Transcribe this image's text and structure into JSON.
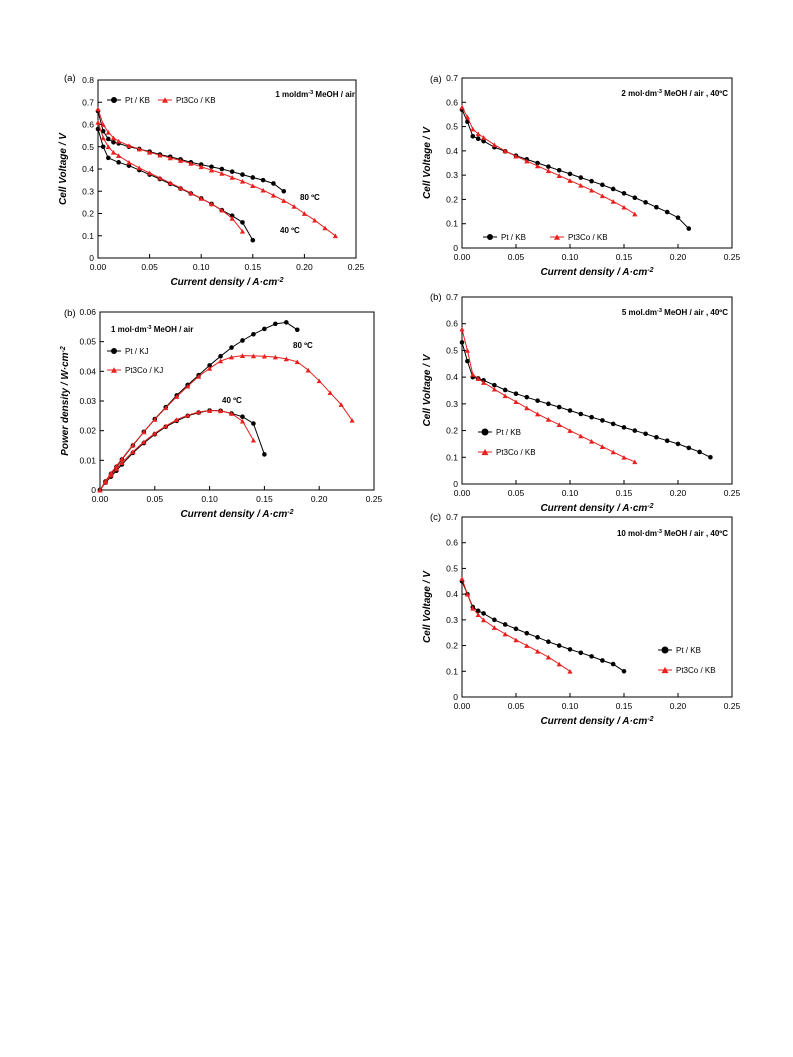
{
  "chart_data": [
    {
      "id": "p1",
      "type": "line",
      "panel_label": "(a)",
      "annotation": "1 moldm-3 MeOH / air",
      "xlabel": "Current density  / A·cm-2",
      "ylabel": "Cell Voltage  / V",
      "xlim": [
        0,
        0.25
      ],
      "ylim": [
        0,
        0.8
      ],
      "xticks": [
        "0.00",
        "0.05",
        "0.10",
        "0.15",
        "0.20",
        "0.25"
      ],
      "yticks": [
        "0",
        "0.1",
        "0.2",
        "0.3",
        "0.4",
        "0.5",
        "0.6",
        "0.7",
        "0.8"
      ],
      "legend_position": "top-left",
      "grid": false,
      "series": [
        {
          "name": "Pt / KB",
          "color": "#000000",
          "marker": "circle",
          "x": [
            0,
            0.005,
            0.01,
            0.015,
            0.02,
            0.03,
            0.04,
            0.05,
            0.06,
            0.07,
            0.08,
            0.09,
            0.1,
            0.11,
            0.12,
            0.13,
            0.14,
            0.15,
            0.16,
            0.17,
            0.18
          ],
          "y": [
            0.66,
            0.57,
            0.535,
            0.52,
            0.515,
            0.5,
            0.49,
            0.478,
            0.465,
            0.455,
            0.443,
            0.43,
            0.42,
            0.41,
            0.4,
            0.388,
            0.375,
            0.362,
            0.35,
            0.335,
            0.3
          ]
        },
        {
          "name": "Pt / KB",
          "color": "#000000",
          "marker": "circle",
          "x": [
            0,
            0.005,
            0.01,
            0.02,
            0.03,
            0.04,
            0.05,
            0.06,
            0.07,
            0.08,
            0.09,
            0.1,
            0.11,
            0.12,
            0.13,
            0.14,
            0.15
          ],
          "y": [
            0.58,
            0.5,
            0.45,
            0.43,
            0.415,
            0.395,
            0.375,
            0.355,
            0.333,
            0.312,
            0.29,
            0.268,
            0.243,
            0.215,
            0.19,
            0.16,
            0.08
          ]
        },
        {
          "name": "Pt3Co / KB",
          "color": "#e8201e",
          "marker": "triangle",
          "x": [
            0,
            0.005,
            0.01,
            0.015,
            0.02,
            0.03,
            0.04,
            0.05,
            0.06,
            0.07,
            0.08,
            0.09,
            0.1,
            0.11,
            0.12,
            0.13,
            0.14,
            0.15,
            0.16,
            0.17,
            0.18,
            0.19,
            0.2,
            0.21,
            0.22,
            0.23
          ],
          "y": [
            0.67,
            0.6,
            0.565,
            0.54,
            0.525,
            0.505,
            0.49,
            0.475,
            0.462,
            0.45,
            0.438,
            0.425,
            0.41,
            0.395,
            0.38,
            0.362,
            0.345,
            0.325,
            0.305,
            0.282,
            0.258,
            0.232,
            0.2,
            0.17,
            0.135,
            0.1
          ]
        },
        {
          "name": "Pt3Co / KB",
          "color": "#e8201e",
          "marker": "triangle",
          "x": [
            0,
            0.005,
            0.01,
            0.015,
            0.02,
            0.03,
            0.04,
            0.05,
            0.06,
            0.07,
            0.08,
            0.09,
            0.1,
            0.11,
            0.12,
            0.13,
            0.14
          ],
          "y": [
            0.61,
            0.54,
            0.5,
            0.475,
            0.46,
            0.43,
            0.405,
            0.382,
            0.36,
            0.338,
            0.315,
            0.292,
            0.268,
            0.243,
            0.215,
            0.178,
            0.12
          ]
        }
      ],
      "annotations": [
        {
          "text": "80 ºC",
          "x": 0.19,
          "y": 0.27
        },
        {
          "text": "40 ºC",
          "x": 0.155,
          "y": 0.125
        }
      ]
    },
    {
      "id": "p2",
      "type": "line",
      "panel_label": "(b)",
      "annotation": "1 mol·dm-3 MeOH / air",
      "xlabel": "Current density / A·cm-2",
      "ylabel": "Power density / W·cm-2",
      "xlim": [
        0,
        0.25
      ],
      "ylim": [
        0,
        0.06
      ],
      "xticks": [
        "0.00",
        "0.05",
        "0.10",
        "0.15",
        "0.20",
        "0.25"
      ],
      "yticks": [
        "0",
        "0.01",
        "0.02",
        "0.03",
        "0.04",
        "0.05",
        "0.06"
      ],
      "legend_position": "top-left",
      "grid": false,
      "series": [
        {
          "name": "Pt / KJ",
          "color": "#000000",
          "marker": "circle",
          "x": [
            0,
            0.005,
            0.01,
            0.015,
            0.02,
            0.03,
            0.04,
            0.05,
            0.06,
            0.07,
            0.08,
            0.09,
            0.1,
            0.11,
            0.12,
            0.13,
            0.14,
            0.15,
            0.16,
            0.17,
            0.18
          ],
          "y": [
            0,
            0.0029,
            0.0054,
            0.0078,
            0.0103,
            0.015,
            0.0196,
            0.0239,
            0.0279,
            0.0319,
            0.0354,
            0.0387,
            0.042,
            0.0451,
            0.048,
            0.0504,
            0.0525,
            0.0543,
            0.056,
            0.0565,
            0.054
          ]
        },
        {
          "name": "Pt / KJ",
          "color": "#000000",
          "marker": "circle",
          "x": [
            0,
            0.005,
            0.01,
            0.015,
            0.02,
            0.03,
            0.04,
            0.05,
            0.06,
            0.07,
            0.08,
            0.09,
            0.1,
            0.11,
            0.12,
            0.13,
            0.14,
            0.15
          ],
          "y": [
            0,
            0.0025,
            0.0045,
            0.0065,
            0.0086,
            0.0125,
            0.0158,
            0.0188,
            0.0213,
            0.0233,
            0.025,
            0.0261,
            0.0268,
            0.0267,
            0.0258,
            0.0247,
            0.0224,
            0.012
          ]
        },
        {
          "name": "Pt3Co / KJ",
          "color": "#e8201e",
          "marker": "triangle",
          "x": [
            0,
            0.005,
            0.01,
            0.015,
            0.02,
            0.03,
            0.04,
            0.05,
            0.06,
            0.07,
            0.08,
            0.09,
            0.1,
            0.11,
            0.12,
            0.13,
            0.14,
            0.15,
            0.16,
            0.17,
            0.18,
            0.19,
            0.2,
            0.21,
            0.22,
            0.23
          ],
          "y": [
            0,
            0.003,
            0.0057,
            0.0081,
            0.0105,
            0.0152,
            0.0196,
            0.0238,
            0.0277,
            0.0315,
            0.035,
            0.0383,
            0.041,
            0.0435,
            0.0448,
            0.0453,
            0.0452,
            0.0451,
            0.0448,
            0.0442,
            0.0432,
            0.0404,
            0.0368,
            0.0328,
            0.0288,
            0.0235
          ]
        },
        {
          "name": "Pt3Co / KJ",
          "color": "#e8201e",
          "marker": "triangle",
          "x": [
            0,
            0.005,
            0.01,
            0.015,
            0.02,
            0.03,
            0.04,
            0.05,
            0.06,
            0.07,
            0.08,
            0.09,
            0.1,
            0.11,
            0.12,
            0.13,
            0.14
          ],
          "y": [
            0,
            0.0027,
            0.005,
            0.0071,
            0.0092,
            0.0129,
            0.0162,
            0.0191,
            0.0216,
            0.0237,
            0.0252,
            0.0263,
            0.0268,
            0.0267,
            0.0258,
            0.0232,
            0.0168
          ]
        }
      ],
      "annotations": [
        {
          "text": "80 ºC",
          "x": 0.175,
          "y": 0.0475
        },
        {
          "text": "40 ºC",
          "x": 0.11,
          "y": 0.0295
        }
      ]
    },
    {
      "id": "p3",
      "type": "line",
      "panel_label": "(a)",
      "annotation": "2 mol·dm-3 MeOH / air , 40ºC",
      "xlabel": "Current density / A·cm-2",
      "ylabel": "Cell Voltage / V",
      "xlim": [
        0,
        0.25
      ],
      "ylim": [
        0,
        0.7
      ],
      "xticks": [
        "0.00",
        "0.05",
        "0.10",
        "0.15",
        "0.20",
        "0.25"
      ],
      "yticks": [
        "0",
        "0.1",
        "0.2",
        "0.3",
        "0.4",
        "0.5",
        "0.6",
        "0.7"
      ],
      "legend_position": "bottom-left",
      "grid": false,
      "series": [
        {
          "name": "Pt / KB",
          "color": "#000000",
          "marker": "circle",
          "x": [
            0,
            0.005,
            0.01,
            0.015,
            0.02,
            0.03,
            0.04,
            0.05,
            0.06,
            0.07,
            0.08,
            0.09,
            0.1,
            0.11,
            0.12,
            0.13,
            0.14,
            0.15,
            0.16,
            0.17,
            0.18,
            0.19,
            0.2,
            0.21
          ],
          "y": [
            0.57,
            0.52,
            0.46,
            0.45,
            0.44,
            0.415,
            0.398,
            0.38,
            0.365,
            0.35,
            0.335,
            0.32,
            0.305,
            0.29,
            0.275,
            0.26,
            0.243,
            0.225,
            0.207,
            0.188,
            0.168,
            0.148,
            0.125,
            0.08
          ]
        },
        {
          "name": "Pt3Co / KB",
          "color": "#e8201e",
          "marker": "triangle",
          "x": [
            0,
            0.005,
            0.01,
            0.015,
            0.02,
            0.03,
            0.04,
            0.05,
            0.06,
            0.07,
            0.08,
            0.09,
            0.1,
            0.11,
            0.12,
            0.13,
            0.14,
            0.15,
            0.16
          ],
          "y": [
            0.58,
            0.54,
            0.49,
            0.47,
            0.455,
            0.425,
            0.4,
            0.378,
            0.358,
            0.338,
            0.318,
            0.298,
            0.278,
            0.258,
            0.238,
            0.215,
            0.192,
            0.168,
            0.14
          ]
        }
      ]
    },
    {
      "id": "p4",
      "type": "line",
      "panel_label": "(b)",
      "annotation": "5 mol.dm-3 MeOH / air , 40ºC",
      "xlabel": "Current density / A·cm-2",
      "ylabel": "Cell Voltage / V",
      "xlim": [
        0,
        0.25
      ],
      "ylim": [
        0,
        0.7
      ],
      "xticks": [
        "0.00",
        "0.05",
        "0.10",
        "0.15",
        "0.20",
        "0.25"
      ],
      "yticks": [
        "0",
        "0.1",
        "0.2",
        "0.3",
        "0.4",
        "0.5",
        "0.6",
        "0.7"
      ],
      "legend_position": "bottom-left",
      "grid": false,
      "series": [
        {
          "name": "Pt / KB",
          "color": "#000000",
          "marker": "circle",
          "x": [
            0,
            0.005,
            0.01,
            0.015,
            0.02,
            0.03,
            0.04,
            0.05,
            0.06,
            0.07,
            0.08,
            0.09,
            0.1,
            0.11,
            0.12,
            0.13,
            0.14,
            0.15,
            0.16,
            0.17,
            0.18,
            0.19,
            0.2,
            0.21,
            0.22,
            0.23
          ],
          "y": [
            0.53,
            0.46,
            0.4,
            0.395,
            0.388,
            0.37,
            0.352,
            0.338,
            0.325,
            0.312,
            0.3,
            0.288,
            0.275,
            0.262,
            0.25,
            0.238,
            0.225,
            0.212,
            0.2,
            0.188,
            0.175,
            0.162,
            0.15,
            0.135,
            0.12,
            0.1
          ]
        },
        {
          "name": "Pt3Co / KB",
          "color": "#e8201e",
          "marker": "triangle",
          "x": [
            0,
            0.005,
            0.01,
            0.015,
            0.02,
            0.03,
            0.04,
            0.05,
            0.06,
            0.07,
            0.08,
            0.09,
            0.1,
            0.11,
            0.12,
            0.13,
            0.14,
            0.15,
            0.16
          ],
          "y": [
            0.58,
            0.5,
            0.41,
            0.395,
            0.38,
            0.355,
            0.33,
            0.308,
            0.285,
            0.262,
            0.242,
            0.222,
            0.2,
            0.18,
            0.16,
            0.14,
            0.12,
            0.1,
            0.083
          ]
        }
      ]
    },
    {
      "id": "p5",
      "type": "line",
      "panel_label": "(c)",
      "annotation": "10 mol·dm-3 MeOH / air , 40ºC",
      "xlabel": "Current density  / A·cm-2",
      "ylabel": "Cell Voltage / V",
      "xlim": [
        0,
        0.25
      ],
      "ylim": [
        0,
        0.7
      ],
      "xticks": [
        "0.00",
        "0.05",
        "0.10",
        "0.15",
        "0.20",
        "0.25"
      ],
      "yticks": [
        "0",
        "0.1",
        "0.2",
        "0.3",
        "0.4",
        "0.5",
        "0.6",
        "0.7"
      ],
      "legend_position": "bottom-right",
      "grid": false,
      "series": [
        {
          "name": "Pt / KB",
          "color": "#000000",
          "marker": "circle",
          "x": [
            0,
            0.005,
            0.01,
            0.015,
            0.02,
            0.03,
            0.04,
            0.05,
            0.06,
            0.07,
            0.08,
            0.09,
            0.1,
            0.11,
            0.12,
            0.13,
            0.14,
            0.15
          ],
          "y": [
            0.45,
            0.4,
            0.35,
            0.335,
            0.325,
            0.3,
            0.282,
            0.265,
            0.248,
            0.232,
            0.215,
            0.2,
            0.185,
            0.172,
            0.158,
            0.142,
            0.128,
            0.1
          ]
        },
        {
          "name": "Pt3Co / KB",
          "color": "#e8201e",
          "marker": "triangle",
          "x": [
            0,
            0.005,
            0.01,
            0.015,
            0.02,
            0.03,
            0.04,
            0.05,
            0.06,
            0.07,
            0.08,
            0.09,
            0.1
          ],
          "y": [
            0.46,
            0.4,
            0.345,
            0.32,
            0.3,
            0.27,
            0.245,
            0.222,
            0.2,
            0.178,
            0.155,
            0.128,
            0.1
          ]
        }
      ]
    }
  ]
}
